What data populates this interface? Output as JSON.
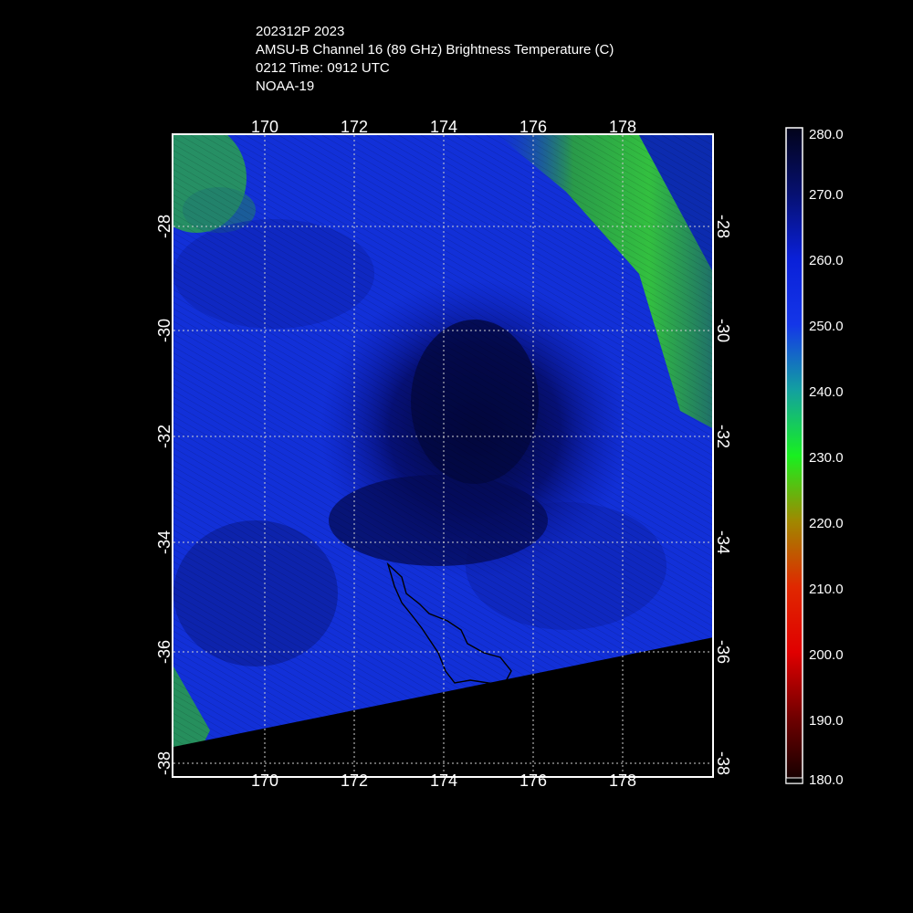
{
  "header": {
    "lines": [
      "202312P 2023",
      "AMSU-B Channel 16 (89 GHz) Brightness Temperature (C)",
      "0212 Time: 0912 UTC",
      "NOAA-19"
    ]
  },
  "map": {
    "lon_ticks": [
      "170",
      "172",
      "174",
      "176",
      "178"
    ],
    "lat_ticks": [
      "-28",
      "-30",
      "-32",
      "-34",
      "-36",
      "-38"
    ],
    "colors": {
      "cold_green": "#22c83a",
      "mid_blue": "#1230e0",
      "deep_blue": "#061070",
      "no_data": "#000000",
      "grid": "#cfcfcf"
    }
  },
  "colorbar": {
    "labels": [
      "280.0",
      "270.0",
      "260.0",
      "250.0",
      "240.0",
      "230.0",
      "220.0",
      "210.0",
      "200.0",
      "190.0",
      "180.0"
    ]
  }
}
